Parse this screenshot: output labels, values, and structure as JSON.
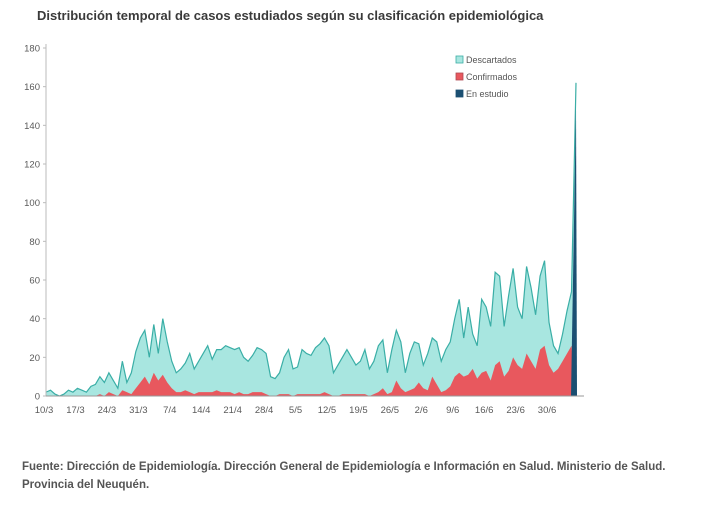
{
  "chart_data": {
    "type": "area",
    "title": "Distribución temporal de casos estudiados según su clasificación epidemiológica",
    "xlabel": "",
    "ylabel": "",
    "ylim": [
      0,
      180
    ],
    "yticks": [
      0,
      20,
      40,
      60,
      80,
      100,
      120,
      140,
      160,
      180
    ],
    "xtick_labels": [
      "10/3",
      "17/3",
      "24/3",
      "31/3",
      "7/4",
      "14/4",
      "21/4",
      "28/4",
      "5/5",
      "12/5",
      "19/5",
      "26/5",
      "2/6",
      "9/6",
      "16/6",
      "23/6",
      "30/6"
    ],
    "colors": {
      "Descartados": "#a8e6e0",
      "Descartados_line": "#3aaea6",
      "Confirmados": "#e8585e",
      "En estudio": "#1b4f72"
    },
    "series": [
      {
        "name": "Descartados",
        "values": [
          2,
          3,
          1,
          0,
          1,
          3,
          2,
          4,
          3,
          2,
          5,
          6,
          10,
          7,
          12,
          8,
          4,
          18,
          7,
          12,
          23,
          30,
          34,
          20,
          37,
          22,
          40,
          28,
          18,
          12,
          14,
          17,
          22,
          14,
          18,
          22,
          26,
          19,
          24,
          24,
          26,
          25,
          24,
          25,
          20,
          18,
          21,
          25,
          24,
          22,
          10,
          9,
          12,
          20,
          24,
          14,
          15,
          24,
          22,
          21,
          25,
          27,
          30,
          26,
          12,
          16,
          20,
          24,
          20,
          16,
          18,
          24,
          14,
          18,
          26,
          29,
          12,
          24,
          34,
          28,
          12,
          22,
          28,
          27,
          16,
          22,
          30,
          28,
          18,
          24,
          28,
          40,
          50,
          30,
          46,
          32,
          26,
          50,
          46,
          36,
          64,
          62,
          36,
          52,
          66,
          46,
          40,
          67,
          56,
          42,
          62,
          70,
          38,
          26,
          22,
          32,
          44,
          54,
          162
        ]
      },
      {
        "name": "Confirmados",
        "values": [
          0,
          0,
          0,
          0,
          0,
          0,
          0,
          0,
          0,
          0,
          0,
          0,
          1,
          0,
          2,
          1,
          0,
          3,
          2,
          1,
          4,
          7,
          10,
          6,
          12,
          8,
          11,
          7,
          4,
          2,
          2,
          3,
          2,
          1,
          2,
          2,
          2,
          2,
          3,
          2,
          2,
          2,
          1,
          2,
          1,
          1,
          2,
          2,
          2,
          1,
          0,
          0,
          1,
          1,
          1,
          0,
          1,
          1,
          1,
          1,
          1,
          1,
          2,
          1,
          0,
          0,
          1,
          1,
          1,
          1,
          1,
          1,
          0,
          1,
          2,
          4,
          1,
          2,
          8,
          4,
          2,
          3,
          4,
          7,
          4,
          3,
          10,
          6,
          2,
          3,
          5,
          10,
          12,
          10,
          11,
          14,
          9,
          12,
          13,
          8,
          16,
          18,
          10,
          13,
          20,
          16,
          14,
          22,
          18,
          14,
          24,
          26,
          16,
          12,
          14,
          18,
          22,
          26,
          0
        ]
      },
      {
        "name": "En estudio",
        "values": [
          0,
          0,
          0,
          0,
          0,
          0,
          0,
          0,
          0,
          0,
          0,
          0,
          0,
          0,
          0,
          0,
          0,
          0,
          0,
          0,
          0,
          0,
          0,
          0,
          0,
          0,
          0,
          0,
          0,
          0,
          0,
          0,
          0,
          0,
          0,
          0,
          0,
          0,
          0,
          0,
          0,
          0,
          0,
          0,
          0,
          0,
          0,
          0,
          0,
          0,
          0,
          0,
          0,
          0,
          0,
          0,
          0,
          0,
          0,
          0,
          0,
          0,
          0,
          0,
          0,
          0,
          0,
          0,
          0,
          0,
          0,
          0,
          0,
          0,
          0,
          0,
          0,
          0,
          0,
          0,
          0,
          0,
          0,
          0,
          0,
          0,
          0,
          0,
          0,
          0,
          0,
          0,
          0,
          0,
          0,
          0,
          0,
          0,
          0,
          0,
          0,
          0,
          0,
          0,
          0,
          0,
          0,
          0,
          0,
          0,
          0,
          0,
          0,
          0,
          0,
          0,
          0,
          0,
          150
        ]
      }
    ]
  },
  "source": "Fuente: Dirección de Epidemiología. Dirección General de Epidemiología e Información en Salud. Ministerio de Salud. Provincia del Neuquén."
}
